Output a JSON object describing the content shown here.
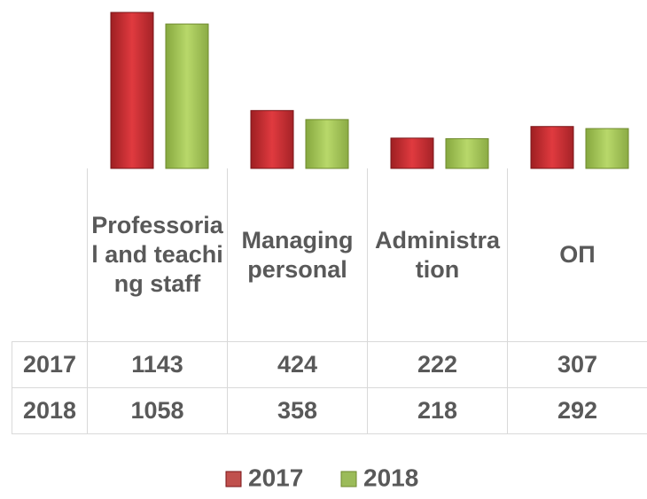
{
  "chart_data": {
    "type": "bar",
    "categories": [
      "Professorial and teaching staff",
      "Managing personal",
      "Administration",
      "ОП"
    ],
    "series": [
      {
        "name": "2017",
        "color": "#c0504d",
        "values": [
          1143,
          424,
          222,
          307
        ]
      },
      {
        "name": "2018",
        "color": "#9bbb59",
        "values": [
          1058,
          358,
          218,
          292
        ]
      }
    ],
    "legend": "bottom",
    "data_table": true
  }
}
